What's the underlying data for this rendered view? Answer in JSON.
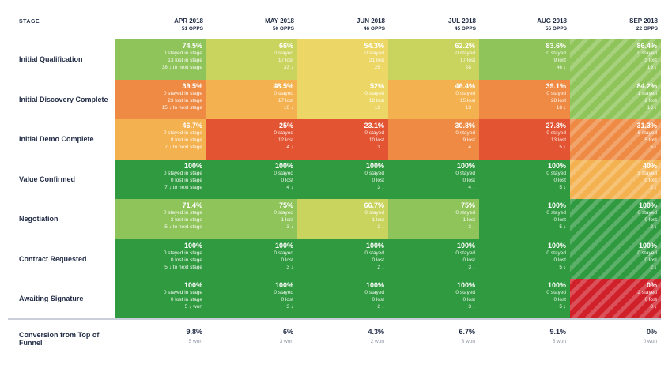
{
  "header": {
    "stage_label": "STAGE",
    "columns": [
      {
        "month": "APR 2018",
        "opps": "51 OPPS"
      },
      {
        "month": "MAY 2018",
        "opps": "50 OPPS"
      },
      {
        "month": "JUN 2018",
        "opps": "46 OPPS"
      },
      {
        "month": "JUL 2018",
        "opps": "45 OPPS"
      },
      {
        "month": "AUG 2018",
        "opps": "55 OPPS"
      },
      {
        "month": "SEP 2018",
        "opps": "22 OPPS"
      }
    ]
  },
  "rows": [
    {
      "stage": "Initial Qualification",
      "cells": [
        {
          "pct": "74.5%",
          "l1": "0 stayed in stage",
          "l2": "13 lost in stage",
          "l3": "38 ↓ to next stage",
          "color": "lg",
          "striped": false
        },
        {
          "pct": "66%",
          "l1": "0 stayed",
          "l2": "17 lost",
          "l3": "33 ↓",
          "color": "yg",
          "striped": false
        },
        {
          "pct": "54.3%",
          "l1": "0 stayed",
          "l2": "21 lost",
          "l3": "25 ↓",
          "color": "y",
          "striped": false
        },
        {
          "pct": "62.2%",
          "l1": "0 stayed",
          "l2": "17 lost",
          "l3": "28 ↓",
          "color": "yg",
          "striped": false
        },
        {
          "pct": "83.6%",
          "l1": "0 stayed",
          "l2": "9 lost",
          "l3": "46 ↓",
          "color": "lg",
          "striped": false
        },
        {
          "pct": "86.4%",
          "l1": "0 stayed",
          "l2": "3 lost",
          "l3": "19 ↓",
          "color": "lg",
          "striped": true
        }
      ]
    },
    {
      "stage": "Initial Discovery Complete",
      "cells": [
        {
          "pct": "39.5%",
          "l1": "0 stayed in stage",
          "l2": "23 lost in stage",
          "l3": "15 ↓ to next stage",
          "color": "do",
          "striped": false
        },
        {
          "pct": "48.5%",
          "l1": "0 stayed",
          "l2": "17 lost",
          "l3": "16 ↓",
          "color": "o",
          "striped": false
        },
        {
          "pct": "52%",
          "l1": "0 stayed",
          "l2": "12 lost",
          "l3": "13 ↓",
          "color": "y",
          "striped": false
        },
        {
          "pct": "46.4%",
          "l1": "0 stayed",
          "l2": "15 lost",
          "l3": "13 ↓",
          "color": "o",
          "striped": false
        },
        {
          "pct": "39.1%",
          "l1": "0 stayed",
          "l2": "28 lost",
          "l3": "18 ↓",
          "color": "do",
          "striped": false
        },
        {
          "pct": "84.2%",
          "l1": "1 stayed",
          "l2": "2 lost",
          "l3": "16 ↓",
          "color": "lg",
          "striped": true
        }
      ]
    },
    {
      "stage": "Initial Demo Complete",
      "cells": [
        {
          "pct": "46.7%",
          "l1": "0 stayed in stage",
          "l2": "8 lost in stage",
          "l3": "7 ↓ to next stage",
          "color": "o",
          "striped": false
        },
        {
          "pct": "25%",
          "l1": "0 stayed",
          "l2": "12 lost",
          "l3": "4 ↓",
          "color": "r",
          "striped": false
        },
        {
          "pct": "23.1%",
          "l1": "0 stayed",
          "l2": "10 lost",
          "l3": "3 ↓",
          "color": "r",
          "striped": false
        },
        {
          "pct": "30.8%",
          "l1": "0 stayed",
          "l2": "9 lost",
          "l3": "4 ↓",
          "color": "do",
          "striped": false
        },
        {
          "pct": "27.8%",
          "l1": "0 stayed",
          "l2": "13 lost",
          "l3": "5 ↓",
          "color": "r",
          "striped": false
        },
        {
          "pct": "31.3%",
          "l1": "6 stayed",
          "l2": "5 lost",
          "l3": "5 ↓",
          "color": "do",
          "striped": true
        }
      ]
    },
    {
      "stage": "Value Confirmed",
      "cells": [
        {
          "pct": "100%",
          "l1": "0 stayed in stage",
          "l2": "0 lost in stage",
          "l3": "7 ↓ to next stage",
          "color": "dg",
          "striped": false
        },
        {
          "pct": "100%",
          "l1": "0 stayed",
          "l2": "0 lost",
          "l3": "4 ↓",
          "color": "dg",
          "striped": false
        },
        {
          "pct": "100%",
          "l1": "0 stayed",
          "l2": "0 lost",
          "l3": "3 ↓",
          "color": "dg",
          "striped": false
        },
        {
          "pct": "100%",
          "l1": "0 stayed",
          "l2": "0 lost",
          "l3": "4 ↓",
          "color": "dg",
          "striped": false
        },
        {
          "pct": "100%",
          "l1": "0 stayed",
          "l2": "0 lost",
          "l3": "5 ↓",
          "color": "dg",
          "striped": false
        },
        {
          "pct": "40%",
          "l1": "3 stayed",
          "l2": "0 lost",
          "l3": "2 ↓",
          "color": "o",
          "striped": true
        }
      ]
    },
    {
      "stage": "Negotiation",
      "cells": [
        {
          "pct": "71.4%",
          "l1": "0 stayed in stage",
          "l2": "2 lost in stage",
          "l3": "5 ↓ to next stage",
          "color": "lg",
          "striped": false
        },
        {
          "pct": "75%",
          "l1": "0 stayed",
          "l2": "1 lost",
          "l3": "3 ↓",
          "color": "lg",
          "striped": false
        },
        {
          "pct": "66.7%",
          "l1": "0 stayed",
          "l2": "1 lost",
          "l3": "2 ↓",
          "color": "yg",
          "striped": false
        },
        {
          "pct": "75%",
          "l1": "0 stayed",
          "l2": "1 lost",
          "l3": "3 ↓",
          "color": "lg",
          "striped": false
        },
        {
          "pct": "100%",
          "l1": "0 stayed",
          "l2": "0 lost",
          "l3": "5 ↓",
          "color": "dg",
          "striped": false
        },
        {
          "pct": "100%",
          "l1": "0 stayed",
          "l2": "0 lost",
          "l3": "2 ↓",
          "color": "dg",
          "striped": true
        }
      ]
    },
    {
      "stage": "Contract Requested",
      "cells": [
        {
          "pct": "100%",
          "l1": "0 stayed in stage",
          "l2": "0 lost in stage",
          "l3": "5 ↓ to next stage",
          "color": "dg",
          "striped": false
        },
        {
          "pct": "100%",
          "l1": "0 stayed",
          "l2": "0 lost",
          "l3": "3 ↓",
          "color": "dg",
          "striped": false
        },
        {
          "pct": "100%",
          "l1": "0 stayed",
          "l2": "0 lost",
          "l3": "2 ↓",
          "color": "dg",
          "striped": false
        },
        {
          "pct": "100%",
          "l1": "0 stayed",
          "l2": "0 lost",
          "l3": "3 ↓",
          "color": "dg",
          "striped": false
        },
        {
          "pct": "100%",
          "l1": "0 stayed",
          "l2": "0 lost",
          "l3": "5 ↓",
          "color": "dg",
          "striped": false
        },
        {
          "pct": "100%",
          "l1": "0 stayed",
          "l2": "0 lost",
          "l3": "2 ↓",
          "color": "dg",
          "striped": true
        }
      ]
    },
    {
      "stage": "Awaiting Signature",
      "cells": [
        {
          "pct": "100%",
          "l1": "0 stayed in stage",
          "l2": "0 lost in stage",
          "l3": "5 ↓ won",
          "color": "dg",
          "striped": false
        },
        {
          "pct": "100%",
          "l1": "0 stayed",
          "l2": "0 lost",
          "l3": "3 ↓",
          "color": "dg",
          "striped": false
        },
        {
          "pct": "100%",
          "l1": "0 stayed",
          "l2": "0 lost",
          "l3": "2 ↓",
          "color": "dg",
          "striped": false
        },
        {
          "pct": "100%",
          "l1": "0 stayed",
          "l2": "0 lost",
          "l3": "3 ↓",
          "color": "dg",
          "striped": false
        },
        {
          "pct": "100%",
          "l1": "0 stayed",
          "l2": "0 lost",
          "l3": "5 ↓",
          "color": "dg",
          "striped": false
        },
        {
          "pct": "0%",
          "l1": "2 stayed",
          "l2": "0 lost",
          "l3": "0 ↓",
          "color": "dr",
          "striped": true
        }
      ]
    }
  ],
  "footer": {
    "label": "Conversion from Top of Funnel",
    "cells": [
      {
        "pct": "9.8%",
        "won": "5 won"
      },
      {
        "pct": "6%",
        "won": "3 won"
      },
      {
        "pct": "4.3%",
        "won": "2 won"
      },
      {
        "pct": "6.7%",
        "won": "3 won"
      },
      {
        "pct": "9.1%",
        "won": "5 won"
      },
      {
        "pct": "0%",
        "won": "0 won"
      }
    ]
  }
}
